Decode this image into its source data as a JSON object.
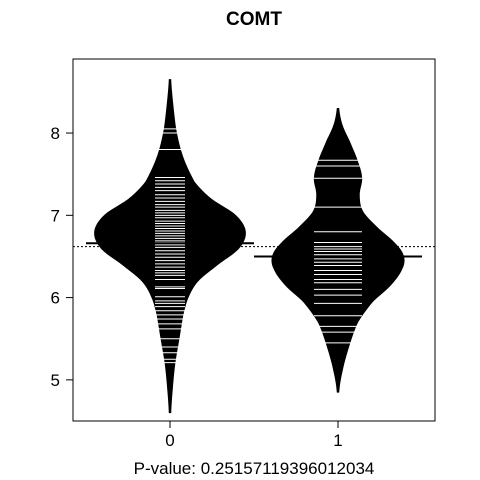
{
  "chart_data": {
    "type": "beanplot",
    "title": "COMT",
    "xlabel": "P-value: 0.25157119396012034",
    "ylabel": "",
    "categories": [
      "0",
      "1"
    ],
    "ylim": [
      4.5,
      8.9
    ],
    "yticks": [
      5,
      6,
      7,
      8
    ],
    "overall_mean": 6.62,
    "grid": false,
    "legend": "none",
    "series": [
      {
        "group": "0",
        "mean": 6.66,
        "density": [
          [
            4.6,
            0.01
          ],
          [
            4.9,
            0.03
          ],
          [
            5.2,
            0.06
          ],
          [
            5.5,
            0.11
          ],
          [
            5.8,
            0.16
          ],
          [
            6.0,
            0.22
          ],
          [
            6.2,
            0.34
          ],
          [
            6.4,
            0.58
          ],
          [
            6.6,
            0.84
          ],
          [
            6.8,
            0.92
          ],
          [
            7.0,
            0.8
          ],
          [
            7.2,
            0.5
          ],
          [
            7.4,
            0.3
          ],
          [
            7.7,
            0.16
          ],
          [
            8.0,
            0.08
          ],
          [
            8.3,
            0.04
          ],
          [
            8.65,
            0.01
          ]
        ],
        "observations": [
          5.21,
          5.25,
          5.33,
          5.4,
          5.5,
          5.62,
          5.68,
          5.74,
          5.79,
          5.84,
          5.89,
          5.93,
          5.96,
          6.01,
          6.11,
          6.13,
          6.22,
          6.27,
          6.3,
          6.33,
          6.37,
          6.41,
          6.45,
          6.49,
          6.53,
          6.57,
          6.61,
          6.64,
          6.67,
          6.69,
          6.72,
          6.75,
          6.78,
          6.81,
          6.84,
          6.87,
          6.9,
          6.93,
          6.97,
          7.0,
          7.03,
          7.06,
          7.1,
          7.13,
          7.17,
          7.21,
          7.25,
          7.3,
          7.34,
          7.38,
          7.42,
          7.46,
          7.8,
          8.0,
          8.05
        ]
      },
      {
        "group": "1",
        "mean": 6.5,
        "density": [
          [
            4.85,
            0.01
          ],
          [
            5.1,
            0.05
          ],
          [
            5.4,
            0.13
          ],
          [
            5.7,
            0.24
          ],
          [
            5.95,
            0.42
          ],
          [
            6.15,
            0.64
          ],
          [
            6.35,
            0.78
          ],
          [
            6.5,
            0.8
          ],
          [
            6.65,
            0.7
          ],
          [
            6.85,
            0.48
          ],
          [
            7.05,
            0.3
          ],
          [
            7.25,
            0.26
          ],
          [
            7.45,
            0.29
          ],
          [
            7.65,
            0.24
          ],
          [
            7.9,
            0.14
          ],
          [
            8.1,
            0.05
          ],
          [
            8.3,
            0.01
          ]
        ],
        "observations": [
          5.45,
          5.58,
          5.65,
          5.78,
          5.93,
          6.03,
          6.1,
          6.18,
          6.22,
          6.28,
          6.33,
          6.39,
          6.43,
          6.47,
          6.52,
          6.56,
          6.59,
          6.62,
          6.67,
          6.8,
          7.1,
          7.45,
          7.6,
          7.67
        ]
      }
    ]
  }
}
